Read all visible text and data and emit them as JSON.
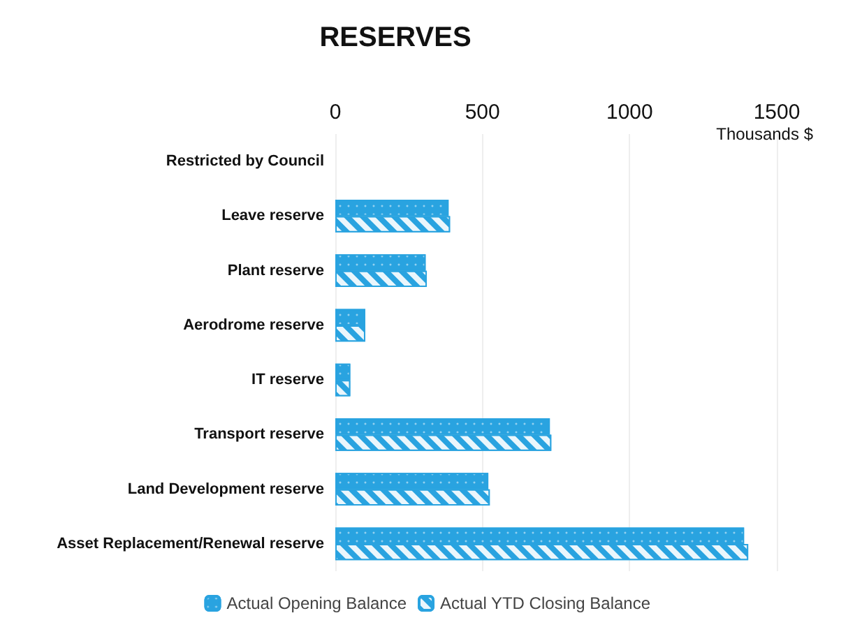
{
  "chart_data": {
    "type": "bar",
    "orientation": "horizontal",
    "title": "RESERVES",
    "xlabel": "Thousands $",
    "categories": [
      "Restricted by Council",
      "Leave reserve",
      "Plant reserve",
      "Aerodrome reserve",
      "IT reserve",
      "Transport reserve",
      "Land Development reserve",
      "Asset Replacement/Renewal reserve"
    ],
    "series": [
      {
        "name": "Actual Opening Balance",
        "color": "#29a3e0",
        "values": [
          null,
          385,
          307,
          102,
          51,
          729,
          520,
          1389
        ]
      },
      {
        "name": "Actual YTD Closing Balance",
        "color": "#29a3e0",
        "values": [
          null,
          390,
          311,
          102,
          51,
          734,
          525,
          1403
        ]
      }
    ],
    "xlim": [
      0,
      1500
    ],
    "xticks": [
      0,
      500,
      1000,
      1500
    ],
    "grid": "x",
    "legend": "bottom"
  }
}
